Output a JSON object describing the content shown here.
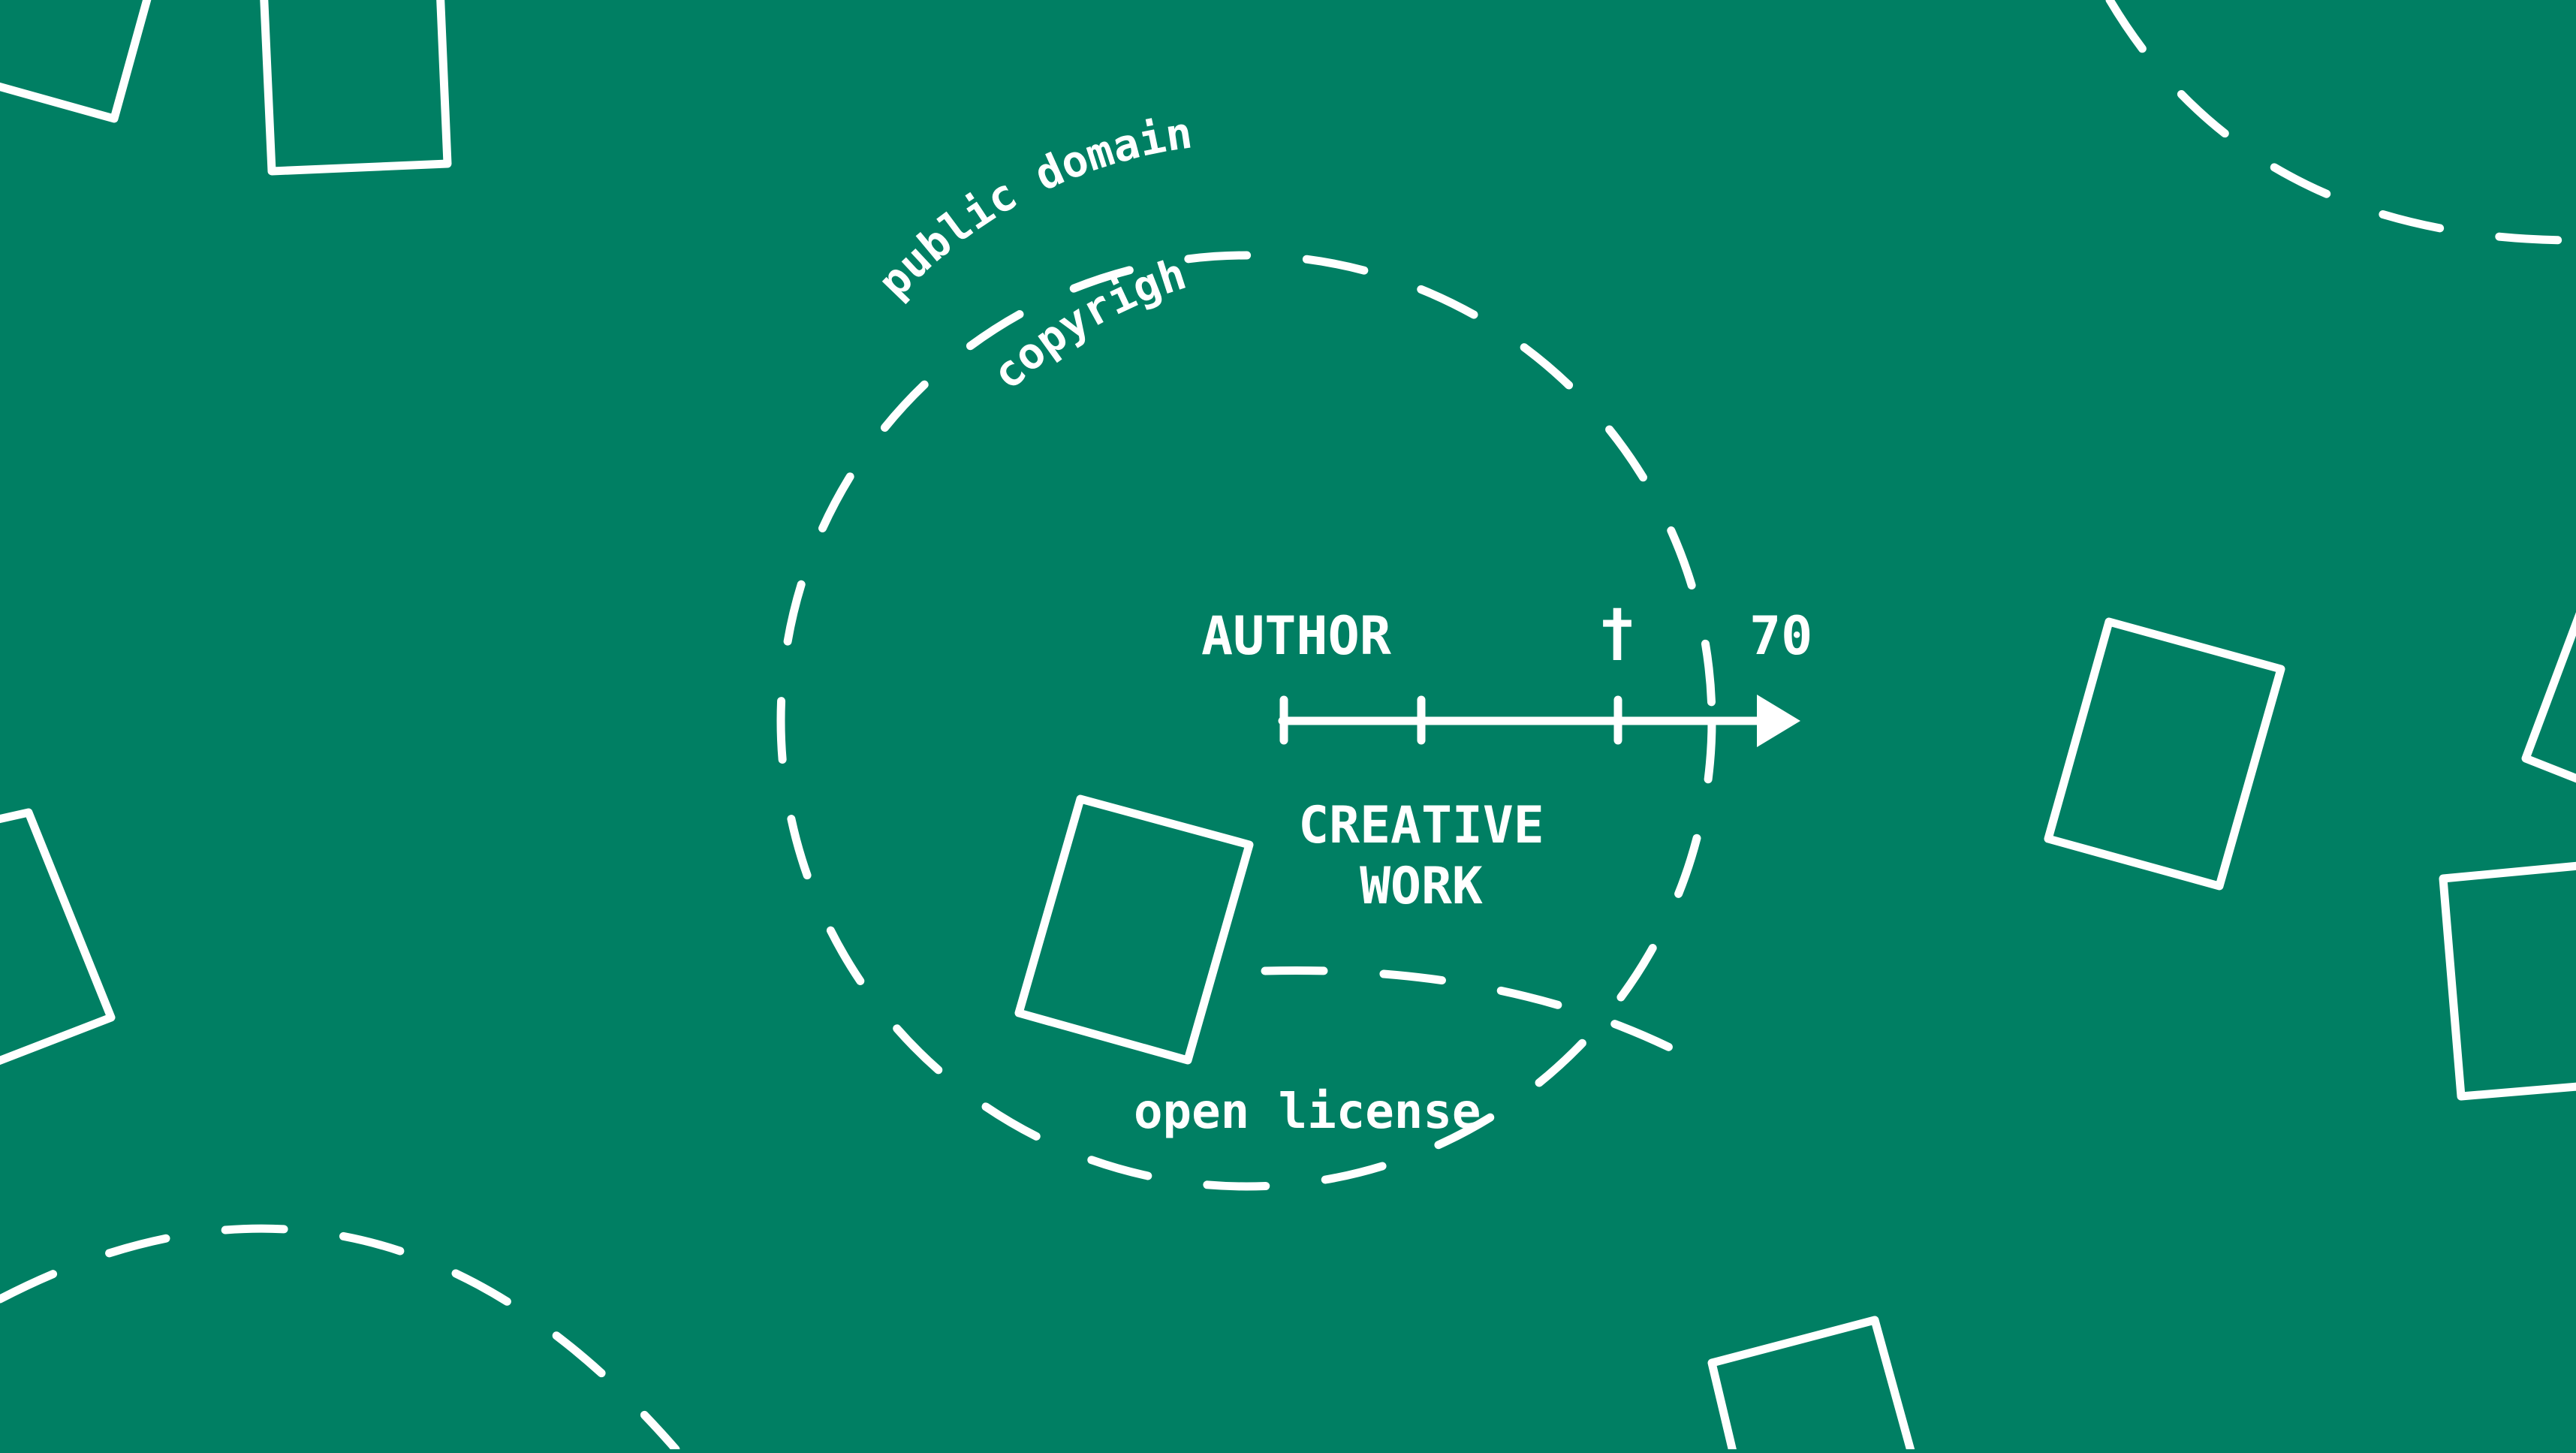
{
  "colors": {
    "background": "#007f63",
    "foreground": "#ffffff"
  },
  "diagram": {
    "curve_labels": {
      "public_domain": "public domain",
      "copyright": "copyright",
      "open_license": "open license"
    },
    "timeline": {
      "author": "AUTHOR",
      "death_mark": "†",
      "years": "70"
    },
    "center_label": {
      "line1": "CREATIVE",
      "line2": "WORK"
    }
  }
}
